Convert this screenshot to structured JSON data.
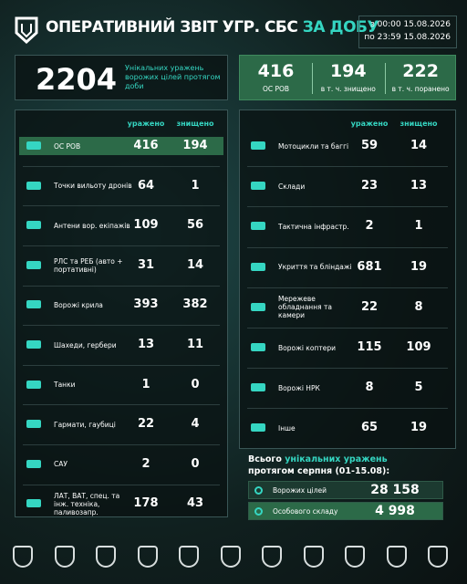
{
  "header": {
    "title": "ОПЕРАТИВНИЙ ЗВІТ УГР. СБС",
    "title_accent": "ЗА ДОБУ",
    "from": "з 00:00 15.08.2026",
    "to": "по 23:59 15.08.2026"
  },
  "summary": {
    "total": "2204",
    "total_label": "Унікальних уражень ворожих цілей протягом доби",
    "stats": [
      {
        "value": "416",
        "label": "ОС РОВ"
      },
      {
        "value": "194",
        "label": "в т. ч. знищено"
      },
      {
        "value": "222",
        "label": "в т. ч. поранено"
      }
    ]
  },
  "left_table": {
    "columns": [
      "уражено",
      "знищено"
    ],
    "rows": [
      {
        "label": "ОС РОВ",
        "hit": "416",
        "destroyed": "194"
      },
      {
        "label": "Точки вильоту дронів",
        "hit": "64",
        "destroyed": "1"
      },
      {
        "label": "Антени вор. екіпажів",
        "hit": "109",
        "destroyed": "56"
      },
      {
        "label": "РЛС та РЕБ (авто + портативні)",
        "hit": "31",
        "destroyed": "14"
      },
      {
        "label": "Ворожі крила",
        "hit": "393",
        "destroyed": "382"
      },
      {
        "label": "Шахеди, гербери",
        "hit": "13",
        "destroyed": "11"
      },
      {
        "label": "Танки",
        "hit": "1",
        "destroyed": "0"
      },
      {
        "label": "Гармати, гаубиці",
        "hit": "22",
        "destroyed": "4"
      },
      {
        "label": "САУ",
        "hit": "2",
        "destroyed": "0"
      },
      {
        "label": "ЛАТ, ВАТ, спец. та інж. техніка, паливозапр.",
        "hit": "178",
        "destroyed": "43"
      }
    ]
  },
  "right_table": {
    "columns": [
      "уражено",
      "знищено"
    ],
    "rows": [
      {
        "label": "Мотоцикли та баггі",
        "hit": "59",
        "destroyed": "14"
      },
      {
        "label": "Склади",
        "hit": "23",
        "destroyed": "13"
      },
      {
        "label": "Тактична інфрастр.",
        "hit": "2",
        "destroyed": "1"
      },
      {
        "label": "Укриття та бліндажі",
        "hit": "681",
        "destroyed": "19"
      },
      {
        "label": "Мережеве обладнання та камери",
        "hit": "22",
        "destroyed": "8"
      },
      {
        "label": "Ворожі коптери",
        "hit": "115",
        "destroyed": "109"
      },
      {
        "label": "Ворожі НРК",
        "hit": "8",
        "destroyed": "5"
      },
      {
        "label": "Інше",
        "hit": "65",
        "destroyed": "19"
      }
    ]
  },
  "monthly": {
    "title_start": "Всього",
    "title_accent": "унікальних уражень",
    "title_end": "протягом серпня (01-15.08):",
    "rows": [
      {
        "label": "Ворожих цілей",
        "value": "28 158"
      },
      {
        "label": "Особового складу",
        "value": "4 998"
      }
    ]
  }
}
